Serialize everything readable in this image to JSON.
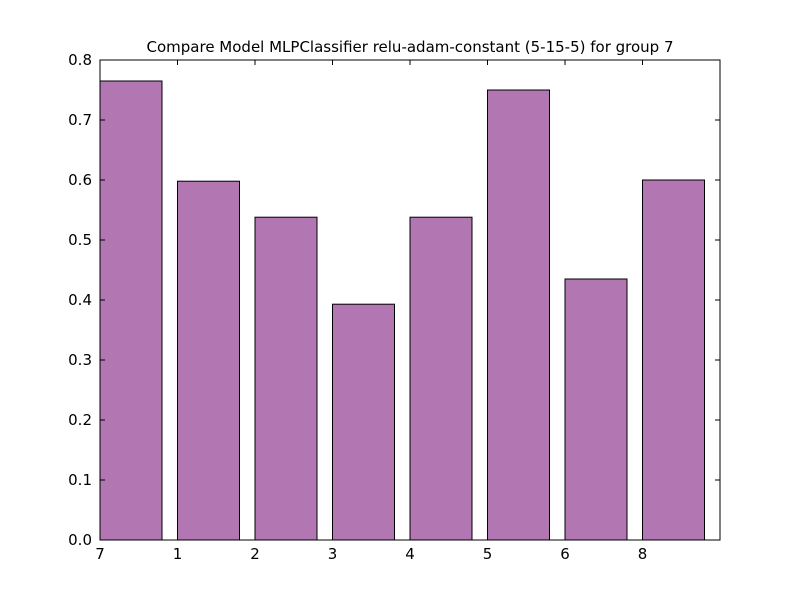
{
  "chart_data": {
    "type": "bar",
    "title": "Compare Model MLPClassifier relu-adam-constant (5-15-5) for group 7",
    "xlabel": "",
    "ylabel": "",
    "categories": [
      "7",
      "1",
      "2",
      "3",
      "4",
      "5",
      "6",
      "8"
    ],
    "values": [
      0.765,
      0.598,
      0.538,
      0.393,
      0.538,
      0.75,
      0.435,
      0.6
    ],
    "ylim": [
      0.0,
      0.8
    ],
    "yticks": [
      "0.0",
      "0.1",
      "0.2",
      "0.3",
      "0.4",
      "0.5",
      "0.6",
      "0.7",
      "0.8"
    ],
    "ytick_values": [
      0.0,
      0.1,
      0.2,
      0.3,
      0.4,
      0.5,
      0.6,
      0.7,
      0.8
    ],
    "xtick_labels": [
      "7",
      "1",
      "2",
      "3",
      "4",
      "5",
      "6",
      "8"
    ],
    "grid": false,
    "legend": "none",
    "colors": {
      "bar_fill": "#b276b2",
      "bar_edge": "#000000",
      "axes": "#000000",
      "background": "#ffffff"
    }
  }
}
